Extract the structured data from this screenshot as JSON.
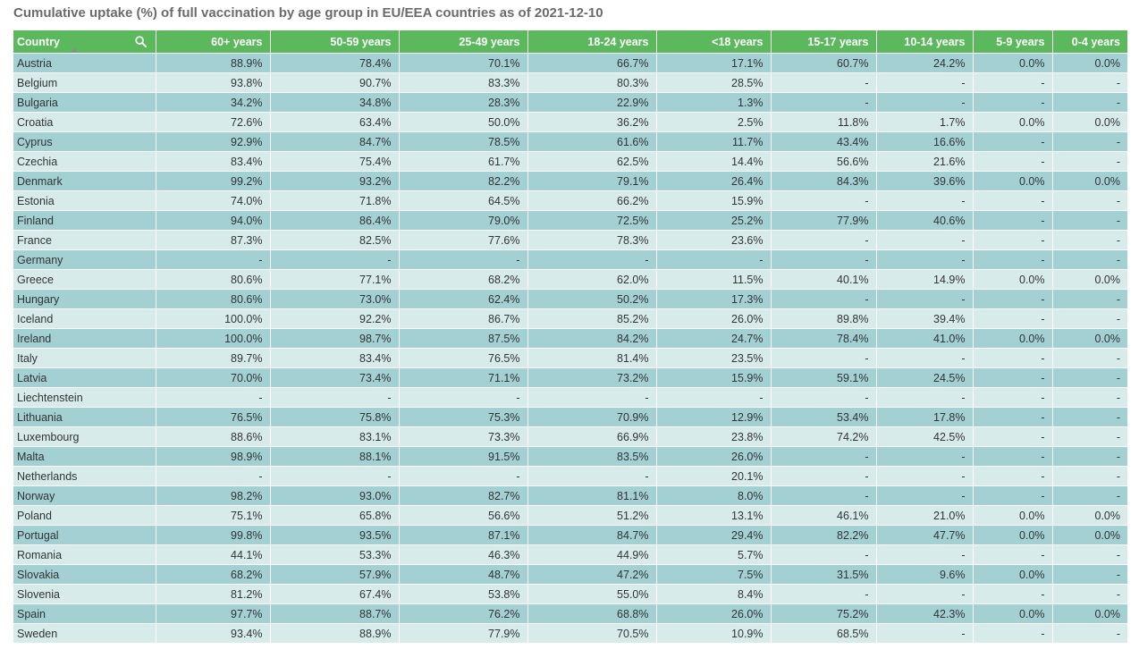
{
  "title": "Cumulative uptake (%) of full vaccination by age group in EU/EEA countries as of 2021-12-10",
  "columns": [
    "Country",
    "60+ years",
    "50-59 years",
    "25-49 years",
    "18-24 years",
    "<18 years",
    "15-17 years",
    "10-14 years",
    "5-9 years",
    "0-4 years"
  ],
  "rows": [
    [
      "Austria",
      "88.9%",
      "78.4%",
      "70.1%",
      "66.7%",
      "17.1%",
      "60.7%",
      "24.2%",
      "0.0%",
      "0.0%"
    ],
    [
      "Belgium",
      "93.8%",
      "90.7%",
      "83.3%",
      "80.3%",
      "28.5%",
      "-",
      "-",
      "-",
      "-"
    ],
    [
      "Bulgaria",
      "34.2%",
      "34.8%",
      "28.3%",
      "22.9%",
      "1.3%",
      "-",
      "-",
      "-",
      "-"
    ],
    [
      "Croatia",
      "72.6%",
      "63.4%",
      "50.0%",
      "36.2%",
      "2.5%",
      "11.8%",
      "1.7%",
      "0.0%",
      "0.0%"
    ],
    [
      "Cyprus",
      "92.9%",
      "84.7%",
      "78.5%",
      "61.6%",
      "11.7%",
      "43.4%",
      "16.6%",
      "-",
      "-"
    ],
    [
      "Czechia",
      "83.4%",
      "75.4%",
      "61.7%",
      "62.5%",
      "14.4%",
      "56.6%",
      "21.6%",
      "-",
      "-"
    ],
    [
      "Denmark",
      "99.2%",
      "93.2%",
      "82.2%",
      "79.1%",
      "26.4%",
      "84.3%",
      "39.6%",
      "0.0%",
      "0.0%"
    ],
    [
      "Estonia",
      "74.0%",
      "71.8%",
      "64.5%",
      "66.2%",
      "15.9%",
      "-",
      "-",
      "-",
      "-"
    ],
    [
      "Finland",
      "94.0%",
      "86.4%",
      "79.0%",
      "72.5%",
      "25.2%",
      "77.9%",
      "40.6%",
      "-",
      "-"
    ],
    [
      "France",
      "87.3%",
      "82.5%",
      "77.6%",
      "78.3%",
      "23.6%",
      "-",
      "-",
      "-",
      "-"
    ],
    [
      "Germany",
      "-",
      "-",
      "-",
      "-",
      "-",
      "-",
      "-",
      "-",
      "-"
    ],
    [
      "Greece",
      "80.6%",
      "77.1%",
      "68.2%",
      "62.0%",
      "11.5%",
      "40.1%",
      "14.9%",
      "0.0%",
      "0.0%"
    ],
    [
      "Hungary",
      "80.6%",
      "73.0%",
      "62.4%",
      "50.2%",
      "17.3%",
      "-",
      "-",
      "-",
      "-"
    ],
    [
      "Iceland",
      "100.0%",
      "92.2%",
      "86.7%",
      "85.2%",
      "26.0%",
      "89.8%",
      "39.4%",
      "-",
      "-"
    ],
    [
      "Ireland",
      "100.0%",
      "98.7%",
      "87.5%",
      "84.2%",
      "24.7%",
      "78.4%",
      "41.0%",
      "0.0%",
      "0.0%"
    ],
    [
      "Italy",
      "89.7%",
      "83.4%",
      "76.5%",
      "81.4%",
      "23.5%",
      "-",
      "-",
      "-",
      "-"
    ],
    [
      "Latvia",
      "70.0%",
      "73.4%",
      "71.1%",
      "73.2%",
      "15.9%",
      "59.1%",
      "24.5%",
      "-",
      "-"
    ],
    [
      "Liechtenstein",
      "-",
      "-",
      "-",
      "-",
      "-",
      "-",
      "-",
      "-",
      "-"
    ],
    [
      "Lithuania",
      "76.5%",
      "75.8%",
      "75.3%",
      "70.9%",
      "12.9%",
      "53.4%",
      "17.8%",
      "-",
      "-"
    ],
    [
      "Luxembourg",
      "88.6%",
      "83.1%",
      "73.3%",
      "66.9%",
      "23.8%",
      "74.2%",
      "42.5%",
      "-",
      "-"
    ],
    [
      "Malta",
      "98.9%",
      "88.1%",
      "91.5%",
      "83.5%",
      "26.0%",
      "-",
      "-",
      "-",
      "-"
    ],
    [
      "Netherlands",
      "-",
      "-",
      "-",
      "-",
      "20.1%",
      "-",
      "-",
      "-",
      "-"
    ],
    [
      "Norway",
      "98.2%",
      "93.0%",
      "82.7%",
      "81.1%",
      "8.0%",
      "-",
      "-",
      "-",
      "-"
    ],
    [
      "Poland",
      "75.1%",
      "65.8%",
      "56.6%",
      "51.2%",
      "13.1%",
      "46.1%",
      "21.0%",
      "0.0%",
      "0.0%"
    ],
    [
      "Portugal",
      "99.8%",
      "93.5%",
      "87.1%",
      "84.7%",
      "29.4%",
      "82.2%",
      "47.7%",
      "0.0%",
      "0.0%"
    ],
    [
      "Romania",
      "44.1%",
      "53.3%",
      "46.3%",
      "44.9%",
      "5.7%",
      "-",
      "-",
      "-",
      "-"
    ],
    [
      "Slovakia",
      "68.2%",
      "57.9%",
      "48.7%",
      "47.2%",
      "7.5%",
      "31.5%",
      "9.6%",
      "0.0%",
      "-"
    ],
    [
      "Slovenia",
      "81.2%",
      "67.4%",
      "53.8%",
      "55.0%",
      "8.4%",
      "-",
      "-",
      "-",
      "-"
    ],
    [
      "Spain",
      "97.7%",
      "88.7%",
      "76.2%",
      "68.8%",
      "26.0%",
      "75.2%",
      "42.3%",
      "0.0%",
      "0.0%"
    ],
    [
      "Sweden",
      "93.4%",
      "88.9%",
      "77.9%",
      "70.5%",
      "10.9%",
      "68.5%",
      "-",
      "-",
      "-"
    ]
  ],
  "icons": {
    "search": "search-icon",
    "sort": "sort-ascending-icon"
  },
  "colors": {
    "header": "#5cb85c",
    "row_odd": "#a3d0d2",
    "row_even": "#d8ebeb",
    "title": "#6b6b6b"
  }
}
